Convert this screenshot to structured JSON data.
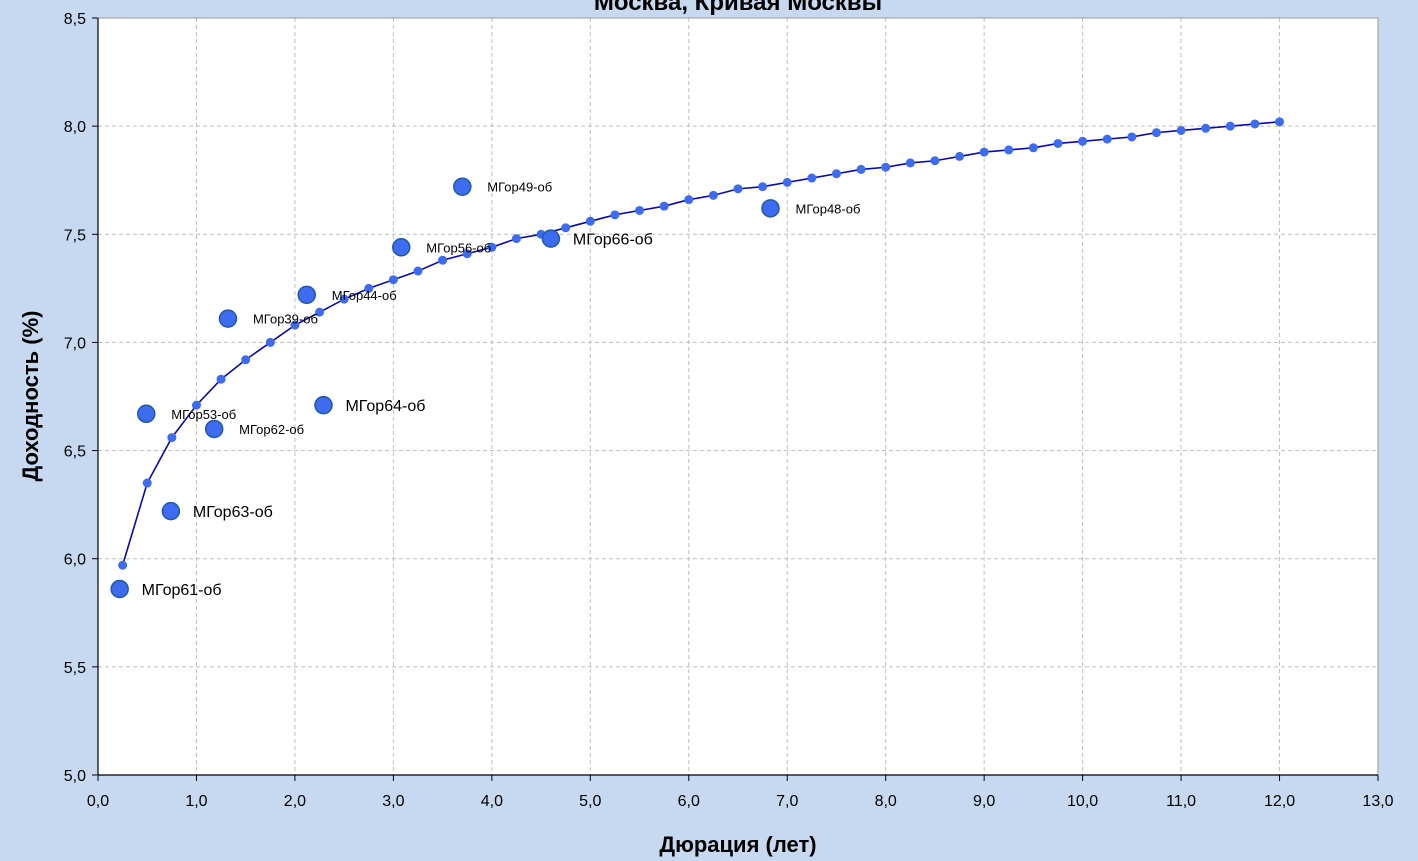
{
  "chart_data": {
    "type": "scatter",
    "title": "Москва, Кривая Москвы",
    "xlabel": "Дюрация (лет)",
    "ylabel": "Доходность (%)",
    "xlim": [
      0,
      13
    ],
    "ylim": [
      5,
      8.5
    ],
    "x_ticks": [
      "0,0",
      "1,0",
      "2,0",
      "3,0",
      "4,0",
      "5,0",
      "6,0",
      "7,0",
      "8,0",
      "9,0",
      "10,0",
      "11,0",
      "12,0",
      "13,0"
    ],
    "y_ticks": [
      "5,0",
      "5,5",
      "6,0",
      "6,5",
      "7,0",
      "7,5",
      "8,0",
      "8,5"
    ],
    "grid": true,
    "colors": {
      "background": "#c6d9f0",
      "plot_area": "#ffffff",
      "curve_line": "#0a0aa8",
      "curve_marker": "#3d6cf0",
      "bond_marker": "#3d6cf0",
      "bond_marker_edge": "#1f5aa8",
      "grid": "#bfbfbf"
    },
    "curve": {
      "x": [
        0.25,
        0.5,
        0.75,
        1.0,
        1.25,
        1.5,
        1.75,
        2.0,
        2.25,
        2.5,
        2.75,
        3.0,
        3.25,
        3.5,
        3.75,
        4.0,
        4.25,
        4.5,
        4.75,
        5.0,
        5.25,
        5.5,
        5.75,
        6.0,
        6.25,
        6.5,
        6.75,
        7.0,
        7.25,
        7.5,
        7.75,
        8.0,
        8.25,
        8.5,
        8.75,
        9.0,
        9.25,
        9.5,
        9.75,
        10.0,
        10.25,
        10.5,
        10.75,
        11.0,
        11.25,
        11.5,
        11.75,
        12.0
      ],
      "y": [
        5.97,
        6.35,
        6.56,
        6.71,
        6.83,
        6.92,
        7.0,
        7.08,
        7.14,
        7.2,
        7.25,
        7.29,
        7.33,
        7.38,
        7.41,
        7.44,
        7.48,
        7.5,
        7.53,
        7.56,
        7.59,
        7.61,
        7.63,
        7.66,
        7.68,
        7.71,
        7.72,
        7.74,
        7.76,
        7.78,
        7.8,
        7.81,
        7.83,
        7.84,
        7.86,
        7.88,
        7.89,
        7.9,
        7.92,
        7.93,
        7.94,
        7.95,
        7.97,
        7.98,
        7.99,
        8.0,
        8.01,
        8.02
      ]
    },
    "bonds": [
      {
        "name": "МГор61-об",
        "x": 0.22,
        "y": 5.86,
        "label_size": "large"
      },
      {
        "name": "МГор53-об",
        "x": 0.49,
        "y": 6.67,
        "label_size": "small"
      },
      {
        "name": "МГор63-об",
        "x": 0.74,
        "y": 6.22,
        "label_size": "large"
      },
      {
        "name": "МГор62-об",
        "x": 1.18,
        "y": 6.6,
        "label_size": "small"
      },
      {
        "name": "МГор39-об",
        "x": 1.32,
        "y": 7.11,
        "label_size": "small"
      },
      {
        "name": "МГор44-об",
        "x": 2.12,
        "y": 7.22,
        "label_size": "small"
      },
      {
        "name": "МГор64-об",
        "x": 2.29,
        "y": 6.71,
        "label_size": "large"
      },
      {
        "name": "МГор56-об",
        "x": 3.08,
        "y": 7.44,
        "label_size": "small"
      },
      {
        "name": "МГор49-об",
        "x": 3.7,
        "y": 7.72,
        "label_size": "small"
      },
      {
        "name": "МГор66-об",
        "x": 4.6,
        "y": 7.48,
        "label_size": "large"
      },
      {
        "name": "МГор48-об",
        "x": 6.83,
        "y": 7.62,
        "label_size": "small"
      }
    ]
  }
}
